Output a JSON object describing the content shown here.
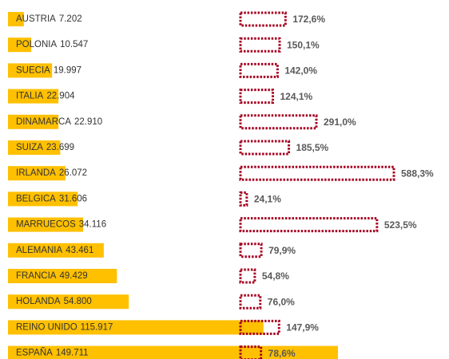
{
  "chart_data": {
    "type": "bar",
    "categories": [
      "AUSTRIA",
      "POLONIA",
      "SUECIA",
      "ITALIA",
      "DINAMARCA",
      "SUIZA",
      "IRLANDA",
      "BELGICA",
      "MARRUECOS",
      "ALEMANIA",
      "FRANCIA",
      "HOLANDA",
      "REINO UNIDO",
      "ESPAÑA"
    ],
    "series": [
      {
        "color": "#ffc000",
        "values": [
          7202,
          10547,
          19997,
          22904,
          22910,
          23699,
          26072,
          31606,
          34116,
          43461,
          49429,
          54800,
          115917,
          149711
        ],
        "value_labels": [
          "7.202",
          "10.547",
          "19.997",
          "22.904",
          "22.910",
          "23.699",
          "26.072",
          "31.606",
          "34.116",
          "43.461",
          "49.429",
          "54.800",
          "115.917",
          "149.711"
        ]
      },
      {
        "color": "#a50021",
        "values": [
          172.6,
          150.1,
          142.0,
          124.1,
          291.0,
          185.5,
          588.3,
          24.1,
          523.5,
          79.9,
          54.8,
          76.0,
          147.9,
          78.6
        ],
        "value_labels": [
          "172,6%",
          "150,1%",
          "142,0%",
          "124,1%",
          "291,0%",
          "185,5%",
          "588,3%",
          "24,1%",
          "523,5%",
          "79,9%",
          "54,8%",
          "76,0%",
          "147,9%",
          "78,6%"
        ]
      }
    ]
  }
}
